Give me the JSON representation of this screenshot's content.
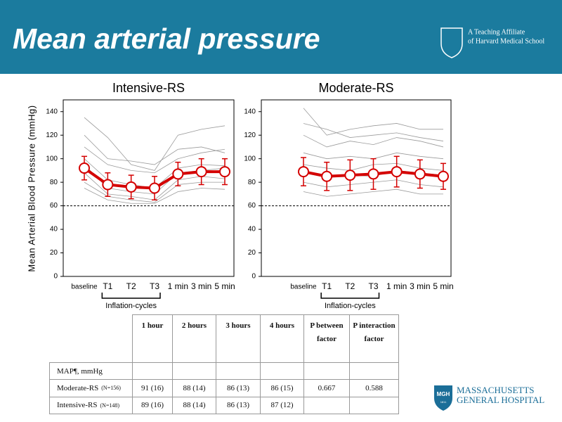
{
  "header": {
    "title": "Mean arterial pressure",
    "affiliation": [
      "A Teaching Affiliate",
      "of Harvard Medical School"
    ]
  },
  "chart_data": [
    {
      "type": "line",
      "title": "Intensive-RS",
      "y_label": "Mean Arterial Blood Pressure (mmHg)",
      "categories": [
        "baseline",
        "T1",
        "T2",
        "T3",
        "1 min",
        "3 min",
        "5 min"
      ],
      "bracket_label": "Inflation-cycles",
      "ylim": [
        0,
        150
      ],
      "yticks": [
        0,
        20,
        40,
        60,
        80,
        100,
        120,
        140
      ],
      "threshold": 60,
      "series": [
        {
          "color": "#d40000",
          "values": [
            92,
            78,
            76,
            75,
            87,
            89,
            89
          ],
          "errors": [
            10,
            10,
            10,
            10,
            10,
            11,
            11
          ]
        }
      ],
      "subject_lines": {
        "color": "#9a9a9a",
        "values": [
          [
            135,
            118,
            95,
            90,
            120,
            125,
            128
          ],
          [
            110,
            95,
            90,
            88,
            100,
            105,
            108
          ],
          [
            100,
            82,
            78,
            75,
            92,
            95,
            94
          ],
          [
            95,
            75,
            72,
            70,
            88,
            90,
            92
          ],
          [
            88,
            70,
            68,
            65,
            82,
            85,
            83
          ],
          [
            80,
            68,
            65,
            63,
            78,
            80,
            80
          ],
          [
            120,
            100,
            98,
            95,
            108,
            110,
            105
          ],
          [
            75,
            65,
            62,
            62,
            72,
            75,
            74
          ]
        ]
      }
    },
    {
      "type": "line",
      "title": "Moderate-RS",
      "categories": [
        "baseline",
        "T1",
        "T2",
        "T3",
        "1 min",
        "3 min",
        "5 min"
      ],
      "bracket_label": "Inflation-cycles",
      "ylim": [
        0,
        150
      ],
      "yticks": [
        0,
        20,
        40,
        60,
        80,
        100,
        120,
        140
      ],
      "threshold": 60,
      "series": [
        {
          "color": "#d40000",
          "values": [
            89,
            85,
            86,
            87,
            89,
            87,
            85
          ],
          "errors": [
            12,
            12,
            13,
            13,
            13,
            12,
            11
          ]
        }
      ],
      "subject_lines": {
        "color": "#9a9a9a",
        "values": [
          [
            143,
            120,
            125,
            128,
            130,
            125,
            125
          ],
          [
            120,
            110,
            115,
            112,
            118,
            115,
            110
          ],
          [
            105,
            100,
            102,
            100,
            105,
            102,
            100
          ],
          [
            95,
            92,
            90,
            95,
            96,
            92,
            90
          ],
          [
            88,
            84,
            86,
            85,
            90,
            88,
            86
          ],
          [
            80,
            76,
            78,
            80,
            82,
            78,
            76
          ],
          [
            72,
            68,
            70,
            72,
            74,
            70,
            70
          ],
          [
            130,
            125,
            118,
            120,
            122,
            118,
            115
          ]
        ]
      }
    }
  ],
  "table": {
    "columns": [
      "1 hour",
      "2 hours",
      "3 hours",
      "4 hours",
      "P between factor",
      "P interaction factor"
    ],
    "section": "MAP¶, mmHg",
    "rows": [
      {
        "label": "Moderate-RS",
        "n": "(N=156)",
        "cells": [
          "91 (16)",
          "88 (14)",
          "86 (13)",
          "86 (15)",
          "0.667",
          "0.588"
        ]
      },
      {
        "label": "Intensive-RS",
        "n": "(N=148)",
        "cells": [
          "89 (16)",
          "88 (14)",
          "86 (13)",
          "87 (12)",
          null,
          null
        ]
      }
    ]
  },
  "mgh_logo": {
    "badge": "MGH",
    "year": "1811",
    "lines": [
      "MASSACHUSETTS",
      "GENERAL HOSPITAL"
    ]
  }
}
